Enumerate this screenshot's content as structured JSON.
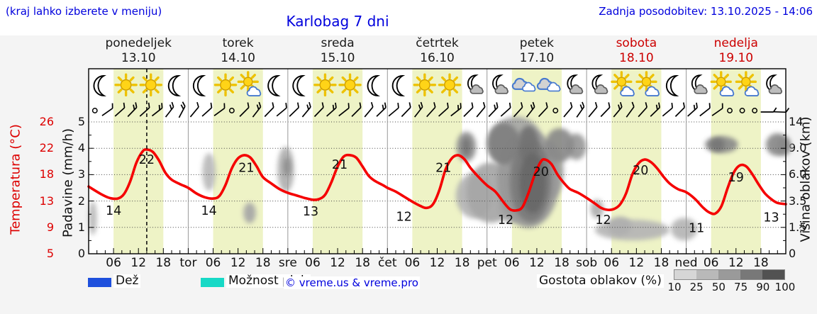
{
  "header": {
    "hint": "(kraj lahko izberete v meniju)",
    "title": "Karlobag 7 dni",
    "updated": "Zadnja posodobitev: 13.10.2025 - 14:06"
  },
  "days": [
    {
      "name": "ponedeljek",
      "date": "13.10",
      "weekend": false
    },
    {
      "name": "torek",
      "date": "14.10",
      "weekend": false
    },
    {
      "name": "sreda",
      "date": "15.10",
      "weekend": false
    },
    {
      "name": "četrtek",
      "date": "16.10",
      "weekend": false
    },
    {
      "name": "petek",
      "date": "17.10",
      "weekend": false
    },
    {
      "name": "sobota",
      "date": "18.10",
      "weekend": true
    },
    {
      "name": "nedelja",
      "date": "19.10",
      "weekend": true
    }
  ],
  "axes": {
    "temp_title": "Temperatura (°C)",
    "temp_ticks": [
      "26",
      "22",
      "18",
      "13",
      "9",
      "5"
    ],
    "precip_title": "Padavine (mm/h)",
    "precip_ticks": [
      "5",
      "4",
      "3",
      "2",
      "1",
      "0"
    ],
    "cloud_title": "Višina oblakov (km)",
    "cloud_ticks": [
      "14",
      "9.0",
      "6.0",
      "3.5",
      "1.5",
      "0"
    ],
    "hour_labels": [
      "06",
      "12",
      "18"
    ],
    "day_boundary_labels": [
      "tor",
      "sre",
      "čet",
      "pet",
      "sob",
      "ned"
    ]
  },
  "legend": {
    "rain_label": "Dež",
    "rain_color": "#1e50dd",
    "showers_label": "Možnost ploh",
    "showers_color": "#17d9c6",
    "credit": "© vreme.us & vreme.pro",
    "cloud_density_label": "Gostota oblakov (%)",
    "colorbar": {
      "colors": [
        "#d6d6d6",
        "#b9b9b9",
        "#9a9a9a",
        "#787878",
        "#525252"
      ],
      "labels": [
        "10",
        "25",
        "50",
        "75",
        "90",
        "100"
      ]
    }
  },
  "chart_data": {
    "type": "line",
    "title": "Karlobag 7 dni",
    "x_axis": {
      "unit": "hour",
      "range": [
        0,
        168
      ],
      "days": 7,
      "daylight_hours": [
        6,
        18
      ],
      "day_band_color": "#eef3c6"
    },
    "temp_axis_c": {
      "min": 5,
      "max": 26,
      "curve_color": "#f50000"
    },
    "precip_axis": {
      "min": 0,
      "max": 5
    },
    "cloud_axis_km": [
      0,
      1.5,
      3.5,
      6,
      9,
      14
    ],
    "current_time_hour": 14,
    "temp_series": {
      "name": "Temperatura",
      "points": [
        [
          0,
          15.7
        ],
        [
          3,
          14.5
        ],
        [
          5,
          13.9
        ],
        [
          7,
          13.8
        ],
        [
          8.5,
          14.5
        ],
        [
          10,
          16.5
        ],
        [
          11.5,
          19.5
        ],
        [
          13,
          21.3
        ],
        [
          14,
          21.6
        ],
        [
          15.5,
          21.2
        ],
        [
          17,
          19.8
        ],
        [
          18.5,
          17.9
        ],
        [
          20,
          16.8
        ],
        [
          22,
          16.1
        ],
        [
          24,
          15.5
        ],
        [
          26,
          14.6
        ],
        [
          28,
          14.0
        ],
        [
          30,
          13.8
        ],
        [
          31.5,
          14.2
        ],
        [
          33,
          16.0
        ],
        [
          34.5,
          18.6
        ],
        [
          36,
          20.2
        ],
        [
          37.5,
          20.7
        ],
        [
          39,
          20.3
        ],
        [
          40.5,
          18.9
        ],
        [
          42,
          17.2
        ],
        [
          44,
          16.2
        ],
        [
          46,
          15.3
        ],
        [
          48,
          14.7
        ],
        [
          50,
          14.3
        ],
        [
          52,
          13.9
        ],
        [
          54,
          13.6
        ],
        [
          55.5,
          13.7
        ],
        [
          57,
          14.4
        ],
        [
          58.5,
          16.4
        ],
        [
          60,
          18.9
        ],
        [
          61.5,
          20.5
        ],
        [
          63,
          20.7
        ],
        [
          64.5,
          20.3
        ],
        [
          66,
          18.9
        ],
        [
          67.5,
          17.4
        ],
        [
          69,
          16.6
        ],
        [
          71,
          15.9
        ],
        [
          72,
          15.5
        ],
        [
          74,
          14.9
        ],
        [
          76,
          14.1
        ],
        [
          78,
          13.3
        ],
        [
          80,
          12.6
        ],
        [
          81.5,
          12.3
        ],
        [
          83,
          12.9
        ],
        [
          84.5,
          15.1
        ],
        [
          86,
          18.4
        ],
        [
          87.5,
          20.2
        ],
        [
          89,
          20.7
        ],
        [
          90.5,
          20.1
        ],
        [
          92,
          18.7
        ],
        [
          94,
          17.2
        ],
        [
          96,
          15.9
        ],
        [
          98,
          14.9
        ],
        [
          100,
          13.2
        ],
        [
          101.5,
          12.1
        ],
        [
          103,
          11.9
        ],
        [
          104.5,
          12.4
        ],
        [
          106,
          14.7
        ],
        [
          107.5,
          17.6
        ],
        [
          109,
          19.7
        ],
        [
          110,
          20.0
        ],
        [
          111.5,
          19.3
        ],
        [
          113,
          17.6
        ],
        [
          114.5,
          16.3
        ],
        [
          116,
          15.3
        ],
        [
          118,
          14.7
        ],
        [
          120,
          13.9
        ],
        [
          122,
          13.0
        ],
        [
          123.5,
          12.3
        ],
        [
          125,
          12.0
        ],
        [
          126.5,
          12.1
        ],
        [
          128,
          12.8
        ],
        [
          129.5,
          14.6
        ],
        [
          131,
          17.6
        ],
        [
          132.5,
          19.4
        ],
        [
          134,
          20.0
        ],
        [
          135.5,
          19.6
        ],
        [
          137,
          18.6
        ],
        [
          138.5,
          17.3
        ],
        [
          140,
          16.2
        ],
        [
          142,
          15.3
        ],
        [
          144,
          14.8
        ],
        [
          146,
          13.8
        ],
        [
          148,
          12.4
        ],
        [
          149.5,
          11.6
        ],
        [
          151,
          11.4
        ],
        [
          152.5,
          12.6
        ],
        [
          154,
          15.5
        ],
        [
          155.5,
          18.0
        ],
        [
          157,
          19.1
        ],
        [
          158.5,
          18.9
        ],
        [
          160,
          17.6
        ],
        [
          161.5,
          16.0
        ],
        [
          163,
          14.6
        ],
        [
          164.5,
          13.7
        ],
        [
          166,
          13.1
        ],
        [
          168,
          12.9
        ]
      ]
    },
    "annotations": [
      [
        6,
        11.9,
        "14"
      ],
      [
        14,
        20.0,
        "22"
      ],
      [
        29,
        11.9,
        "14"
      ],
      [
        38,
        18.7,
        "21"
      ],
      [
        53.5,
        11.8,
        "13"
      ],
      [
        60.5,
        19.2,
        "21"
      ],
      [
        76,
        10.9,
        "12"
      ],
      [
        85.5,
        18.7,
        "21"
      ],
      [
        100.5,
        10.4,
        "12"
      ],
      [
        109,
        18.1,
        "20"
      ],
      [
        124,
        10.4,
        "12"
      ],
      [
        133,
        18.3,
        "20"
      ],
      [
        146.5,
        9.1,
        "11"
      ],
      [
        156,
        17.2,
        "19"
      ],
      [
        164.5,
        10.8,
        "13"
      ]
    ],
    "weather_icons": [
      [
        "moon",
        "sun",
        "sun",
        "moon"
      ],
      [
        "moon",
        "sun",
        "sun_cloud",
        "moon"
      ],
      [
        "moon",
        "sun",
        "sun",
        "moon"
      ],
      [
        "moon",
        "sun",
        "sun",
        "moon_cloud"
      ],
      [
        "moon_cloud",
        "clouds",
        "clouds",
        "moon_cloud"
      ],
      [
        "moon_cloud",
        "sun_cloud",
        "sun_cloud",
        "moon"
      ],
      [
        "moon_cloud",
        "sun_cloud",
        "sun_cloud",
        "moon_cloud"
      ]
    ],
    "wind_barbs": [
      {
        "c": 1
      },
      {
        "a": -35,
        "n": 1
      },
      {
        "a": -42,
        "n": 1
      },
      {
        "a": -46,
        "n": 2
      },
      {
        "a": -42,
        "n": 1
      },
      {
        "a": -38,
        "n": 2
      },
      {
        "a": -52,
        "n": 2
      },
      {
        "a": -62,
        "n": 2
      },
      {
        "a": -50,
        "n": 1
      },
      {
        "a": -42,
        "n": 1
      },
      {
        "a": -36,
        "n": 1
      },
      {
        "c": 1
      },
      {
        "a": -45,
        "n": 1
      },
      {
        "a": -52,
        "n": 2
      },
      {
        "a": -46,
        "n": 1
      },
      {
        "a": -40,
        "n": 1
      },
      {
        "a": -44,
        "n": 1
      },
      {
        "a": -50,
        "n": 2
      },
      {
        "a": -46,
        "n": 1
      },
      {
        "a": -42,
        "n": 2
      },
      {
        "a": -38,
        "n": 1
      },
      {
        "a": -45,
        "n": 1
      },
      {
        "a": -50,
        "n": 1
      },
      {
        "a": -44,
        "n": 2
      },
      {
        "a": -40,
        "n": 1
      },
      {
        "a": -46,
        "n": 1
      },
      {
        "a": -52,
        "n": 2
      },
      {
        "a": -48,
        "n": 1
      },
      {
        "a": -42,
        "n": 1
      },
      {
        "a": -38,
        "n": 2
      },
      {
        "a": -45,
        "n": 1
      },
      {
        "a": -50,
        "n": 1
      },
      {
        "a": -46,
        "n": 2
      },
      {
        "a": -42,
        "n": 1
      },
      {
        "a": -48,
        "n": 1
      },
      {
        "a": -52,
        "n": 2
      },
      {
        "a": -47,
        "n": 1
      },
      {
        "c": 1
      },
      {
        "a": -50,
        "n": 1
      },
      {
        "a": -55,
        "n": 2
      },
      {
        "a": -50,
        "n": 1
      },
      {
        "a": -46,
        "n": 1
      },
      {
        "a": -50,
        "n": 2
      },
      {
        "a": -54,
        "n": 1
      },
      {
        "a": -48,
        "n": 1
      },
      {
        "a": -44,
        "n": 2
      },
      {
        "a": -40,
        "n": 1
      },
      {
        "a": -45,
        "n": 1
      },
      {
        "a": -42,
        "n": 2
      },
      {
        "a": -38,
        "n": 1
      },
      {
        "a": -35,
        "n": 1
      },
      {
        "c": 1
      },
      {
        "c": 1
      },
      {
        "c": 1
      },
      {
        "a": 0,
        "n": 1
      },
      {
        "a": 2,
        "n": 1
      }
    ],
    "clouds": [
      [
        1,
        2.2,
        1,
        0.9,
        0.25
      ],
      [
        29,
        6.3,
        1.6,
        1.0,
        0.25
      ],
      [
        38.8,
        2.6,
        1.5,
        0.55,
        0.35
      ],
      [
        47.5,
        6.6,
        2,
        1.2,
        0.3
      ],
      [
        47.8,
        6.9,
        0.8,
        0.5,
        0.5
      ],
      [
        91,
        9.3,
        2.4,
        0.8,
        0.45
      ],
      [
        91,
        9.3,
        1.1,
        0.5,
        0.6
      ],
      [
        100,
        9.9,
        4,
        1.1,
        0.55
      ],
      [
        103,
        10,
        6.5,
        1.4,
        0.35
      ],
      [
        106,
        9.7,
        2.4,
        1,
        0.62
      ],
      [
        113.5,
        9.6,
        3.5,
        0.9,
        0.5
      ],
      [
        117.5,
        9.3,
        2.4,
        0.7,
        0.42
      ],
      [
        93,
        4.0,
        4.5,
        1.2,
        0.28
      ],
      [
        97,
        4.3,
        6,
        1.6,
        0.35
      ],
      [
        106,
        5.6,
        7.5,
        2.6,
        0.42
      ],
      [
        106.5,
        5.4,
        5,
        2.2,
        0.58
      ],
      [
        107,
        5.2,
        3.2,
        1.6,
        0.68
      ],
      [
        102,
        3.0,
        3.5,
        0.8,
        0.33
      ],
      [
        111,
        6.5,
        3.5,
        1.5,
        0.35
      ],
      [
        108.5,
        2.9,
        1.3,
        0.45,
        0.3
      ],
      [
        122.5,
        2.9,
        1.6,
        0.5,
        0.3
      ],
      [
        128,
        1.6,
        2.8,
        0.5,
        0.3
      ],
      [
        131,
        1.35,
        9,
        0.55,
        0.27
      ],
      [
        143.5,
        1.4,
        3.2,
        0.6,
        0.27
      ],
      [
        152.5,
        9.7,
        4,
        0.45,
        0.5
      ],
      [
        151.5,
        9.7,
        1.8,
        0.35,
        0.6
      ],
      [
        166,
        9.7,
        2.8,
        0.6,
        0.5
      ],
      [
        167.5,
        9.4,
        1.8,
        0.5,
        0.42
      ]
    ]
  }
}
